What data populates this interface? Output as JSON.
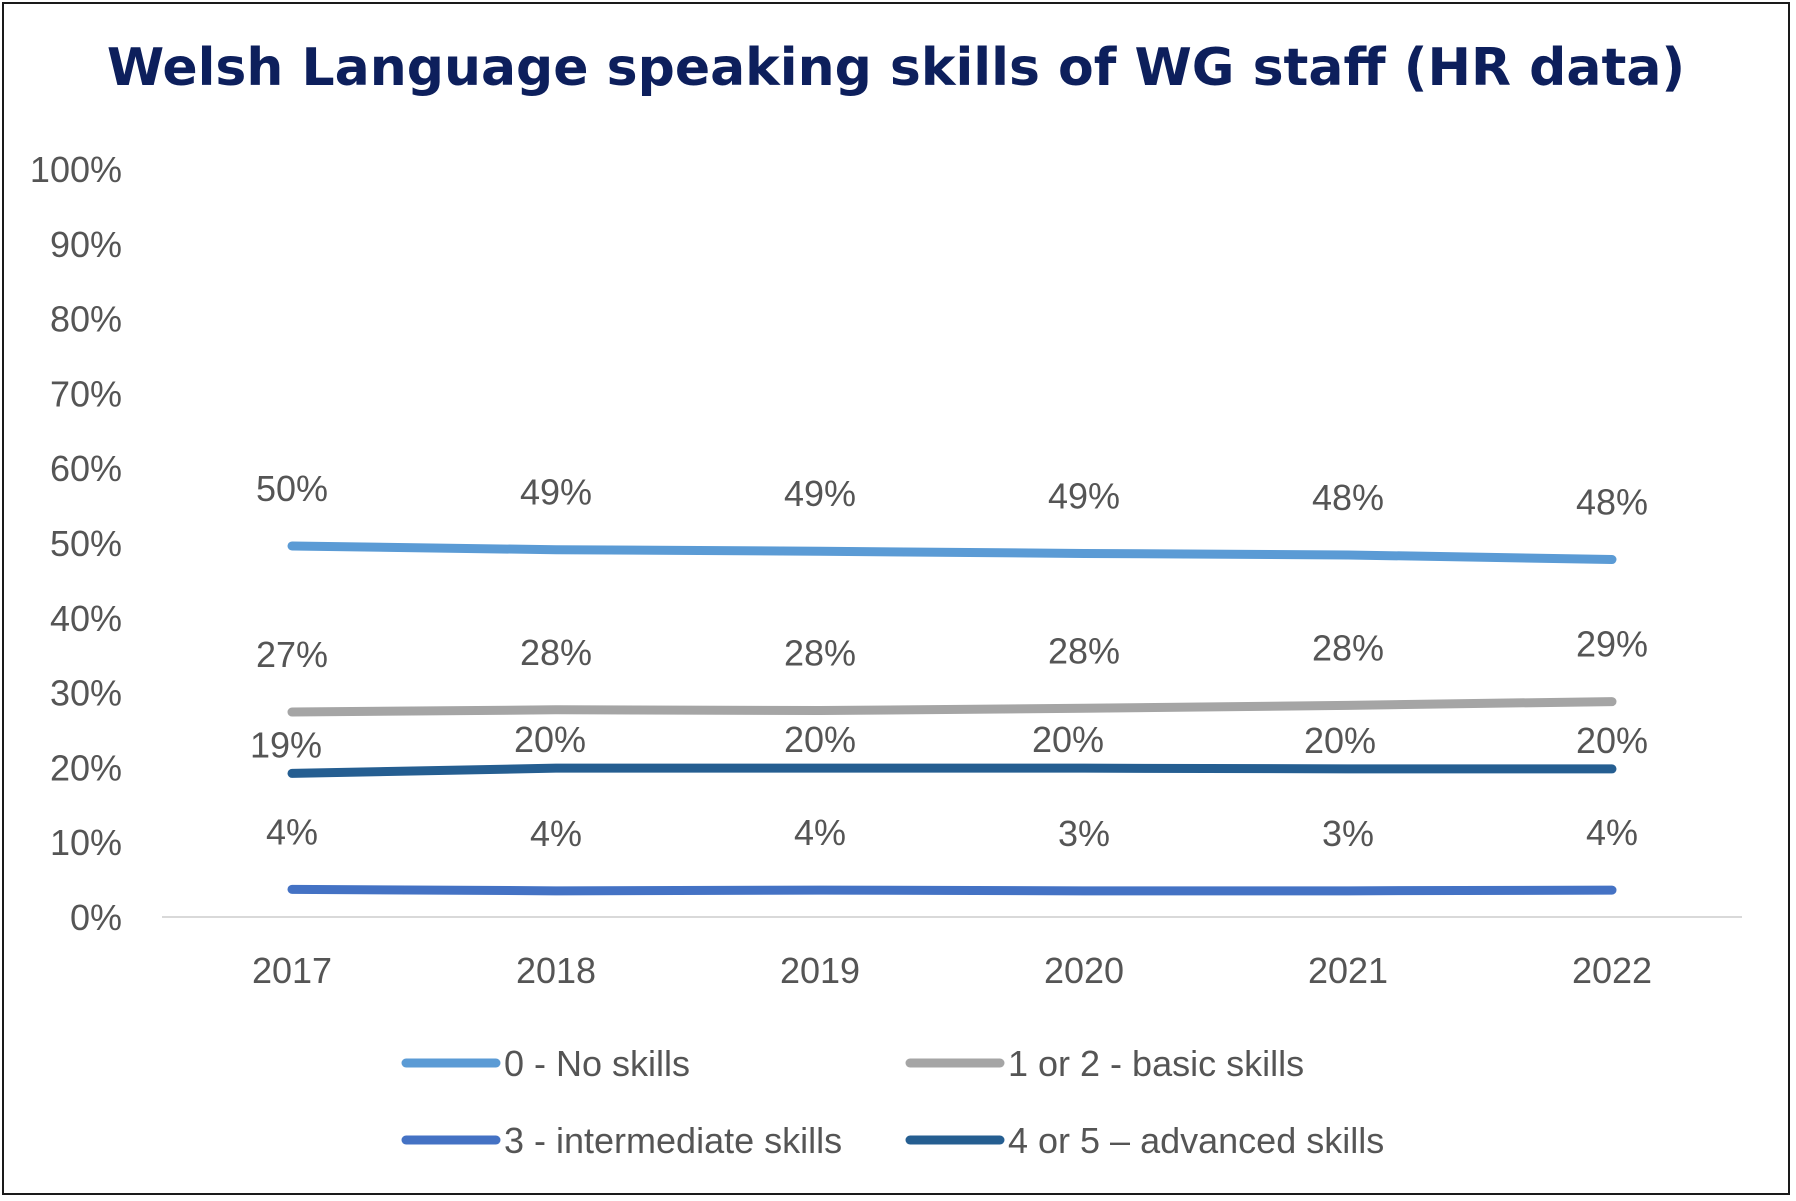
{
  "chart_data": {
    "type": "line",
    "title": "Welsh Language speaking skills of WG staff (HR data)",
    "xlabel": "",
    "ylabel": "",
    "categories": [
      "2017",
      "2018",
      "2019",
      "2020",
      "2021",
      "2022"
    ],
    "ylim": [
      0,
      100
    ],
    "yticks": [
      "0%",
      "10%",
      "20%",
      "30%",
      "40%",
      "50%",
      "60%",
      "70%",
      "80%",
      "90%",
      "100%"
    ],
    "grid": false,
    "legend": "bottom",
    "series": [
      {
        "name": "0 - No skills",
        "color": "#5b9bd5",
        "values": [
          49.6,
          49.1,
          48.9,
          48.6,
          48.4,
          47.8
        ],
        "labels": [
          "50%",
          "49%",
          "49%",
          "49%",
          "48%",
          "48%"
        ]
      },
      {
        "name": "1 or 2 - basic skills",
        "color": "#a5a5a5",
        "values": [
          27.4,
          27.7,
          27.6,
          27.9,
          28.3,
          28.8
        ],
        "labels": [
          "27%",
          "28%",
          "28%",
          "28%",
          "28%",
          "29%"
        ]
      },
      {
        "name": "3 - intermediate skills",
        "color": "#4472c4",
        "values": [
          3.7,
          3.5,
          3.6,
          3.5,
          3.5,
          3.6
        ],
        "labels": [
          "4%",
          "4%",
          "4%",
          "3%",
          "3%",
          "4%"
        ]
      },
      {
        "name": "4 or 5 – advanced skills",
        "color": "#255e91",
        "values": [
          19.2,
          19.9,
          19.9,
          19.9,
          19.8,
          19.8
        ],
        "labels": [
          "19%",
          "20%",
          "20%",
          "20%",
          "20%",
          "20%"
        ]
      }
    ]
  }
}
